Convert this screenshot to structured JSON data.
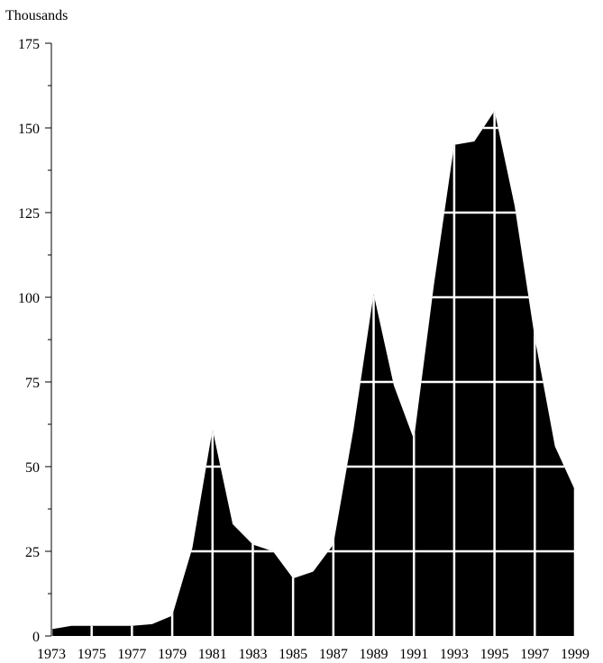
{
  "chart_data": {
    "type": "area",
    "title": "",
    "ylabel": "Thousands",
    "xlabel": "",
    "ylim": [
      0,
      175
    ],
    "yticks": [
      0,
      25,
      50,
      75,
      100,
      125,
      150,
      175
    ],
    "yticks_minor_step": 12.5,
    "xticks": [
      "1973",
      "1975",
      "1977",
      "1979",
      "1981",
      "1983",
      "1985",
      "1987",
      "1989",
      "1991",
      "1993",
      "1995",
      "1997",
      "1999"
    ],
    "x": [
      1973,
      1974,
      1975,
      1976,
      1977,
      1978,
      1979,
      1980,
      1981,
      1982,
      1983,
      1984,
      1985,
      1986,
      1987,
      1988,
      1989,
      1990,
      1991,
      1992,
      1993,
      1994,
      1995,
      1996,
      1997,
      1998,
      1999
    ],
    "series": [
      {
        "values": [
          2,
          3,
          3,
          3,
          3,
          3.5,
          6,
          26,
          61,
          33,
          27,
          25,
          17,
          19,
          27,
          61,
          101,
          74,
          58,
          104,
          145,
          146,
          155,
          127,
          88,
          56,
          43
        ],
        "color": "#000000"
      }
    ],
    "gridlines_color": "#ffffff",
    "grid_horizontal": true,
    "grid_vertical": true
  }
}
